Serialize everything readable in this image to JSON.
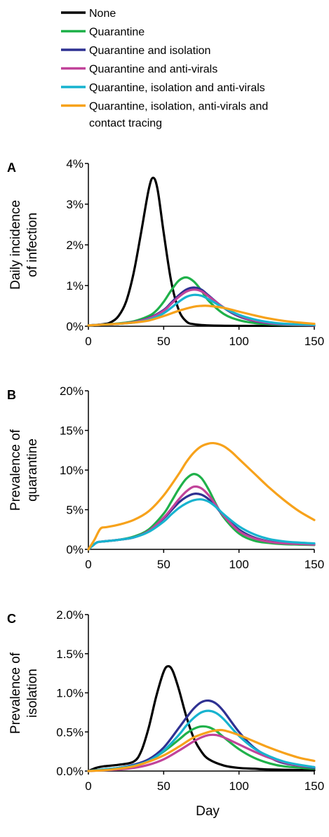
{
  "legend": {
    "items": [
      {
        "label": "None",
        "color": "#000000"
      },
      {
        "label": "Quarantine",
        "color": "#1fb14a"
      },
      {
        "label": "Quarantine and isolation",
        "color": "#2e3192"
      },
      {
        "label": "Quarantine and anti-virals",
        "color": "#c1439a"
      },
      {
        "label": "Quarantine, isolation and anti-virals",
        "color": "#17b3cf"
      },
      {
        "label": "Quarantine, isolation, anti-virals and",
        "label_line2": "contact tracing",
        "color": "#f7a21b"
      }
    ]
  },
  "shared_xlabel": "Day",
  "chart_data": [
    {
      "type": "line",
      "panel": "A",
      "ylabel_lines": [
        "Daily incidence",
        "of infection"
      ],
      "xlim": [
        0,
        150
      ],
      "ylim": [
        0,
        4
      ],
      "xticks": [
        0,
        50,
        100,
        150
      ],
      "yticks": [
        0,
        1,
        2,
        3,
        4
      ],
      "ytick_labels": [
        "0%",
        "1%",
        "2%",
        "3%",
        "4%"
      ],
      "series": [
        {
          "legend_index": 0,
          "x": [
            0,
            10,
            15,
            20,
            25,
            30,
            35,
            40,
            43,
            46,
            50,
            55,
            60,
            65,
            70,
            80,
            100,
            150
          ],
          "y": [
            0.02,
            0.05,
            0.1,
            0.25,
            0.6,
            1.3,
            2.3,
            3.35,
            3.65,
            3.35,
            2.3,
            1.1,
            0.4,
            0.12,
            0.05,
            0.02,
            0.01,
            0.01
          ]
        },
        {
          "legend_index": 1,
          "x": [
            0,
            10,
            20,
            30,
            40,
            45,
            50,
            55,
            60,
            65,
            70,
            75,
            80,
            90,
            100,
            110,
            120,
            130,
            150
          ],
          "y": [
            0.02,
            0.04,
            0.07,
            0.12,
            0.25,
            0.38,
            0.6,
            0.88,
            1.12,
            1.2,
            1.1,
            0.88,
            0.62,
            0.3,
            0.15,
            0.08,
            0.05,
            0.03,
            0.02
          ]
        },
        {
          "legend_index": 2,
          "x": [
            0,
            10,
            20,
            30,
            40,
            50,
            55,
            60,
            65,
            70,
            75,
            80,
            90,
            100,
            110,
            120,
            130,
            150
          ],
          "y": [
            0.02,
            0.04,
            0.06,
            0.1,
            0.2,
            0.4,
            0.58,
            0.76,
            0.9,
            0.95,
            0.9,
            0.75,
            0.45,
            0.24,
            0.13,
            0.07,
            0.04,
            0.02
          ]
        },
        {
          "legend_index": 3,
          "x": [
            0,
            10,
            20,
            30,
            40,
            50,
            55,
            60,
            65,
            70,
            75,
            80,
            90,
            100,
            110,
            120,
            130,
            150
          ],
          "y": [
            0.02,
            0.04,
            0.06,
            0.1,
            0.19,
            0.38,
            0.55,
            0.72,
            0.85,
            0.9,
            0.86,
            0.73,
            0.46,
            0.26,
            0.14,
            0.08,
            0.05,
            0.02
          ]
        },
        {
          "legend_index": 4,
          "x": [
            0,
            10,
            20,
            30,
            40,
            50,
            60,
            65,
            70,
            75,
            80,
            90,
            100,
            110,
            120,
            130,
            150
          ],
          "y": [
            0.02,
            0.04,
            0.06,
            0.09,
            0.16,
            0.32,
            0.6,
            0.72,
            0.77,
            0.75,
            0.66,
            0.45,
            0.28,
            0.17,
            0.1,
            0.06,
            0.03
          ]
        },
        {
          "legend_index": 5,
          "x": [
            0,
            10,
            20,
            30,
            40,
            50,
            60,
            70,
            75,
            80,
            90,
            100,
            110,
            120,
            130,
            140,
            150
          ],
          "y": [
            0.02,
            0.04,
            0.06,
            0.09,
            0.14,
            0.25,
            0.38,
            0.48,
            0.5,
            0.5,
            0.45,
            0.36,
            0.27,
            0.19,
            0.13,
            0.09,
            0.06
          ]
        }
      ]
    },
    {
      "type": "line",
      "panel": "B",
      "ylabel_lines": [
        "Prevalence of",
        "quarantine"
      ],
      "xlim": [
        0,
        150
      ],
      "ylim": [
        0,
        20
      ],
      "xticks": [
        0,
        50,
        100,
        150
      ],
      "yticks": [
        0,
        5,
        10,
        15,
        20
      ],
      "ytick_labels": [
        "0%",
        "5%",
        "10%",
        "15%",
        "20%"
      ],
      "series": [
        {
          "legend_index": 1,
          "x": [
            0,
            3,
            6,
            10,
            20,
            30,
            40,
            50,
            55,
            60,
            65,
            70,
            75,
            80,
            85,
            90,
            100,
            110,
            120,
            130,
            140,
            150
          ],
          "y": [
            0,
            0.5,
            0.9,
            1.0,
            1.2,
            1.6,
            2.5,
            4.5,
            6.0,
            7.6,
            8.9,
            9.5,
            9.0,
            7.5,
            5.6,
            4.0,
            2.0,
            1.1,
            0.8,
            0.65,
            0.6,
            0.55
          ]
        },
        {
          "legend_index": 2,
          "x": [
            0,
            3,
            6,
            10,
            20,
            30,
            40,
            50,
            55,
            60,
            65,
            70,
            75,
            80,
            85,
            90,
            100,
            110,
            120,
            130,
            140,
            150
          ],
          "y": [
            0,
            0.5,
            0.9,
            1.0,
            1.2,
            1.5,
            2.3,
            3.9,
            4.9,
            5.9,
            6.6,
            7.0,
            6.9,
            6.3,
            5.3,
            4.2,
            2.5,
            1.5,
            1.0,
            0.8,
            0.7,
            0.65
          ]
        },
        {
          "legend_index": 3,
          "x": [
            0,
            3,
            6,
            10,
            20,
            30,
            40,
            50,
            55,
            60,
            65,
            70,
            75,
            80,
            85,
            90,
            100,
            110,
            120,
            130,
            140,
            150
          ],
          "y": [
            0,
            0.5,
            0.9,
            1.0,
            1.2,
            1.5,
            2.3,
            4.0,
            5.1,
            6.3,
            7.3,
            7.9,
            7.7,
            6.8,
            5.5,
            4.2,
            2.3,
            1.4,
            0.95,
            0.75,
            0.68,
            0.6
          ]
        },
        {
          "legend_index": 4,
          "x": [
            0,
            3,
            6,
            10,
            20,
            30,
            40,
            50,
            55,
            60,
            65,
            70,
            75,
            80,
            85,
            90,
            100,
            110,
            120,
            130,
            140,
            150
          ],
          "y": [
            0,
            0.5,
            0.9,
            1.0,
            1.2,
            1.5,
            2.2,
            3.5,
            4.4,
            5.2,
            5.8,
            6.2,
            6.3,
            6.0,
            5.3,
            4.4,
            2.9,
            1.9,
            1.3,
            1.0,
            0.85,
            0.75
          ]
        },
        {
          "legend_index": 5,
          "x": [
            0,
            4,
            8,
            12,
            20,
            30,
            40,
            50,
            60,
            65,
            70,
            75,
            80,
            83,
            86,
            90,
            95,
            100,
            110,
            120,
            130,
            140,
            150
          ],
          "y": [
            0,
            1.2,
            2.6,
            2.8,
            3.1,
            3.7,
            4.8,
            6.8,
            9.5,
            11.0,
            12.2,
            13.0,
            13.35,
            13.4,
            13.3,
            13.0,
            12.3,
            11.4,
            9.6,
            7.8,
            6.2,
            4.8,
            3.7
          ]
        }
      ]
    },
    {
      "type": "line",
      "panel": "C",
      "ylabel_lines": [
        "Prevalence of",
        "isolation"
      ],
      "xlim": [
        0,
        150
      ],
      "ylim": [
        0,
        2.0
      ],
      "xticks": [
        0,
        50,
        100,
        150
      ],
      "yticks": [
        0,
        0.5,
        1.0,
        1.5,
        2.0
      ],
      "ytick_labels": [
        "0.0%",
        "0.5%",
        "1.0%",
        "1.5%",
        "2.0%"
      ],
      "series": [
        {
          "legend_index": 0,
          "x": [
            0,
            5,
            10,
            20,
            30,
            35,
            40,
            45,
            50,
            53,
            56,
            60,
            65,
            70,
            75,
            80,
            90,
            100,
            110,
            120,
            150
          ],
          "y": [
            0,
            0.04,
            0.06,
            0.08,
            0.12,
            0.25,
            0.55,
            0.95,
            1.27,
            1.34,
            1.28,
            1.05,
            0.7,
            0.42,
            0.25,
            0.15,
            0.07,
            0.04,
            0.03,
            0.02,
            0.01
          ]
        },
        {
          "legend_index": 1,
          "x": [
            0,
            10,
            20,
            30,
            40,
            50,
            60,
            65,
            70,
            75,
            80,
            85,
            90,
            100,
            110,
            120,
            130,
            150
          ],
          "y": [
            0,
            0.02,
            0.04,
            0.07,
            0.13,
            0.25,
            0.4,
            0.48,
            0.54,
            0.57,
            0.56,
            0.51,
            0.43,
            0.28,
            0.17,
            0.1,
            0.06,
            0.03
          ]
        },
        {
          "legend_index": 2,
          "x": [
            0,
            10,
            20,
            30,
            40,
            50,
            60,
            65,
            70,
            75,
            80,
            85,
            90,
            100,
            110,
            120,
            130,
            150
          ],
          "y": [
            0,
            0.02,
            0.04,
            0.08,
            0.15,
            0.3,
            0.55,
            0.68,
            0.8,
            0.88,
            0.9,
            0.86,
            0.76,
            0.5,
            0.3,
            0.18,
            0.1,
            0.04
          ]
        },
        {
          "legend_index": 3,
          "x": [
            0,
            10,
            20,
            30,
            40,
            50,
            60,
            70,
            75,
            80,
            85,
            90,
            100,
            110,
            120,
            130,
            140,
            150
          ],
          "y": [
            0,
            0.01,
            0.02,
            0.04,
            0.08,
            0.15,
            0.26,
            0.38,
            0.43,
            0.46,
            0.46,
            0.43,
            0.34,
            0.25,
            0.17,
            0.11,
            0.07,
            0.05
          ]
        },
        {
          "legend_index": 4,
          "x": [
            0,
            10,
            20,
            30,
            40,
            50,
            60,
            65,
            70,
            75,
            80,
            85,
            90,
            100,
            110,
            120,
            130,
            140,
            150
          ],
          "y": [
            0,
            0.02,
            0.04,
            0.07,
            0.13,
            0.26,
            0.46,
            0.58,
            0.68,
            0.75,
            0.77,
            0.74,
            0.66,
            0.45,
            0.29,
            0.19,
            0.12,
            0.08,
            0.05
          ]
        },
        {
          "legend_index": 5,
          "x": [
            0,
            10,
            20,
            30,
            40,
            50,
            60,
            70,
            80,
            85,
            90,
            100,
            110,
            120,
            130,
            140,
            150
          ],
          "y": [
            0,
            0.01,
            0.03,
            0.06,
            0.12,
            0.2,
            0.31,
            0.43,
            0.5,
            0.52,
            0.52,
            0.46,
            0.38,
            0.3,
            0.23,
            0.17,
            0.13
          ]
        }
      ]
    }
  ]
}
